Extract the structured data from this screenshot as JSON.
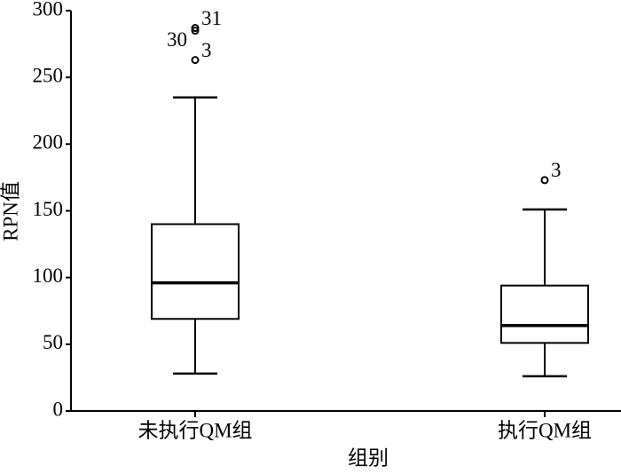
{
  "chart_data": {
    "type": "box",
    "x_label": "组别",
    "y_label": "RPN值",
    "categories": [
      "未执行QM组",
      "执行QM组"
    ],
    "whisker_low": [
      28,
      26
    ],
    "q1": [
      69,
      51
    ],
    "median": [
      96,
      64
    ],
    "q3": [
      140,
      94
    ],
    "whisker_high": [
      235,
      151
    ],
    "outliers": [
      [
        {
          "value": 263,
          "label": "3"
        },
        {
          "value": 285,
          "label": "30"
        },
        {
          "value": 287,
          "label": "31"
        }
      ],
      [
        {
          "value": 173,
          "label": "3"
        }
      ]
    ],
    "color": "#000000",
    "ylim": [
      0,
      300
    ],
    "yticks": [
      0,
      50,
      100,
      150,
      200,
      250,
      300
    ],
    "grid": false
  }
}
